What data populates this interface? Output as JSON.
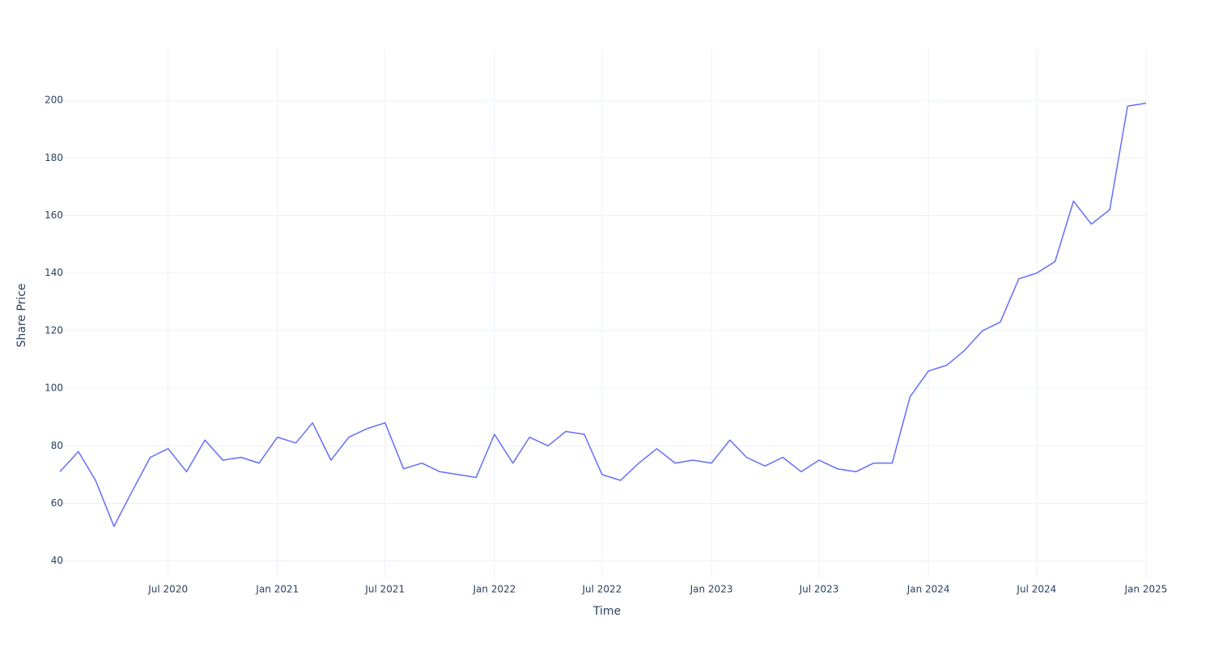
{
  "chart_data": {
    "type": "line",
    "xlabel": "Time",
    "ylabel": "Share Price",
    "x": [
      "2020-01",
      "2020-02",
      "2020-03",
      "2020-04",
      "2020-05",
      "2020-06",
      "2020-07",
      "2020-08",
      "2020-09",
      "2020-10",
      "2020-11",
      "2020-12",
      "2021-01",
      "2021-02",
      "2021-03",
      "2021-04",
      "2021-05",
      "2021-06",
      "2021-07",
      "2021-08",
      "2021-09",
      "2021-10",
      "2021-11",
      "2021-12",
      "2022-01",
      "2022-02",
      "2022-03",
      "2022-04",
      "2022-05",
      "2022-06",
      "2022-07",
      "2022-08",
      "2022-09",
      "2022-10",
      "2022-11",
      "2022-12",
      "2023-01",
      "2023-02",
      "2023-03",
      "2023-04",
      "2023-05",
      "2023-06",
      "2023-07",
      "2023-08",
      "2023-09",
      "2023-10",
      "2023-11",
      "2023-12",
      "2024-01",
      "2024-02",
      "2024-03",
      "2024-04",
      "2024-05",
      "2024-06",
      "2024-07",
      "2024-08",
      "2024-09",
      "2024-10",
      "2024-11",
      "2024-12",
      "2025-01"
    ],
    "series": [
      {
        "name": "Share Price",
        "color": "#636efa",
        "values": [
          71,
          78,
          68,
          52,
          64,
          76,
          79,
          71,
          82,
          75,
          76,
          74,
          83,
          81,
          88,
          75,
          83,
          86,
          88,
          72,
          74,
          71,
          70,
          69,
          84,
          74,
          83,
          80,
          85,
          84,
          70,
          68,
          74,
          79,
          74,
          75,
          74,
          82,
          76,
          73,
          76,
          71,
          75,
          72,
          71,
          74,
          74,
          97,
          106,
          108,
          113,
          120,
          123,
          138,
          140,
          144,
          165,
          157,
          162,
          198,
          199
        ]
      }
    ],
    "xlim": [
      "2020-01",
      "2025-01"
    ],
    "xticks": [
      {
        "value": "2020-07",
        "label": "Jul 2020"
      },
      {
        "value": "2021-01",
        "label": "Jan 2021"
      },
      {
        "value": "2021-07",
        "label": "Jul 2021"
      },
      {
        "value": "2022-01",
        "label": "Jan 2022"
      },
      {
        "value": "2022-07",
        "label": "Jul 2022"
      },
      {
        "value": "2023-01",
        "label": "Jan 2023"
      },
      {
        "value": "2023-07",
        "label": "Jul 2023"
      },
      {
        "value": "2024-01",
        "label": "Jan 2024"
      },
      {
        "value": "2024-07",
        "label": "Jul 2024"
      },
      {
        "value": "2025-01",
        "label": "Jan 2025"
      }
    ],
    "ylim": [
      34,
      218
    ],
    "yticks": [
      40,
      60,
      80,
      100,
      120,
      140,
      160,
      180,
      200
    ],
    "grid": true
  }
}
